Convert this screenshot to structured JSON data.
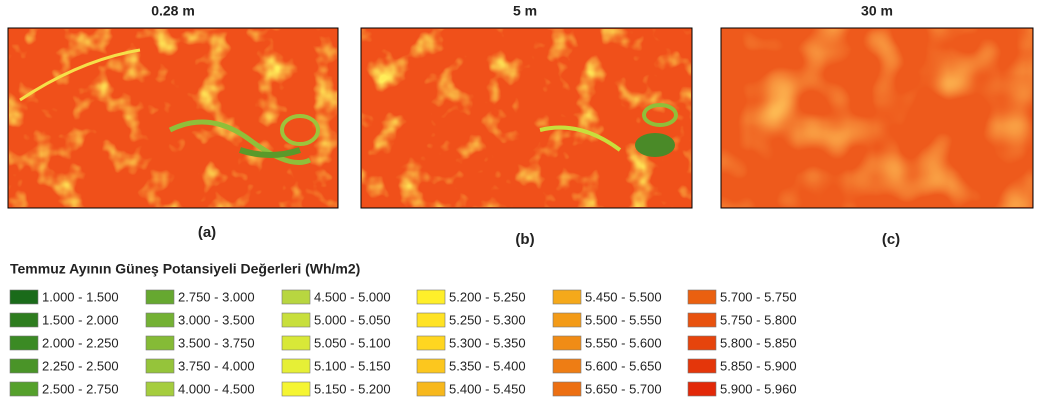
{
  "panels": [
    {
      "title": "0.28 m",
      "caption": "(a)"
    },
    {
      "title": "5 m",
      "caption": "(b)"
    },
    {
      "title": "30 m",
      "caption": "(c)"
    }
  ],
  "legend": {
    "title": "Temmuz Ayının Güneş Potansiyeli Değerleri (Wh/m2)",
    "items": [
      {
        "label": "1.000 - 1.500",
        "color": "#1a6b1a"
      },
      {
        "label": "1.500 - 2.000",
        "color": "#2e7d1f"
      },
      {
        "label": "2.000 - 2.250",
        "color": "#3b8a24"
      },
      {
        "label": "2.250 - 2.500",
        "color": "#4a9428"
      },
      {
        "label": "2.500 - 2.750",
        "color": "#55a02c"
      },
      {
        "label": "2.750 - 3.000",
        "color": "#66a830"
      },
      {
        "label": "3.000 - 3.500",
        "color": "#74b134"
      },
      {
        "label": "3.500 - 3.750",
        "color": "#85bb36"
      },
      {
        "label": "3.750 - 4.000",
        "color": "#95c43a"
      },
      {
        "label": "4.000 - 4.500",
        "color": "#a5cd3e"
      },
      {
        "label": "4.500 - 5.000",
        "color": "#b8d640"
      },
      {
        "label": "5.000 - 5.050",
        "color": "#c8df3c"
      },
      {
        "label": "5.050 - 5.100",
        "color": "#d8e838"
      },
      {
        "label": "5.100 - 5.150",
        "color": "#e6ef36"
      },
      {
        "label": "5.150 - 5.200",
        "color": "#f5f532"
      },
      {
        "label": "5.200 - 5.250",
        "color": "#ffef2a"
      },
      {
        "label": "5.250 - 5.300",
        "color": "#ffe324"
      },
      {
        "label": "5.300 - 5.350",
        "color": "#ffd620"
      },
      {
        "label": "5.350 - 5.400",
        "color": "#fcc71e"
      },
      {
        "label": "5.400 - 5.450",
        "color": "#f7b81c"
      },
      {
        "label": "5.450 - 5.500",
        "color": "#f5a91a"
      },
      {
        "label": "5.500 - 5.550",
        "color": "#f39b18"
      },
      {
        "label": "5.550 - 5.600",
        "color": "#f08c16"
      },
      {
        "label": "5.600 - 5.650",
        "color": "#ee7d14"
      },
      {
        "label": "5.650 - 5.700",
        "color": "#ec6f12"
      },
      {
        "label": "5.700 - 5.750",
        "color": "#ea6010"
      },
      {
        "label": "5.750 - 5.800",
        "color": "#e8520e"
      },
      {
        "label": "5.800 - 5.850",
        "color": "#e6440c"
      },
      {
        "label": "5.850 - 5.900",
        "color": "#e4360a"
      },
      {
        "label": "5.900 - 5.960",
        "color": "#e22808"
      }
    ]
  }
}
